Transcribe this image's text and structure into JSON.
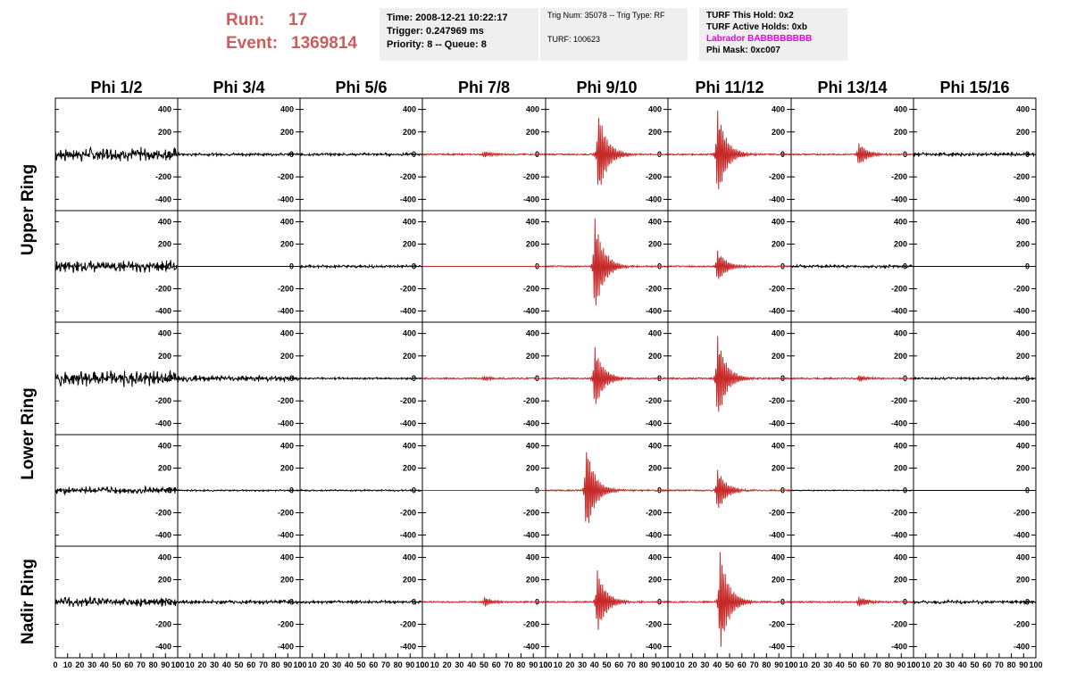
{
  "header": {
    "run_label": "Run:",
    "run_value": "17",
    "event_label": "Event:",
    "event_value": "1369814",
    "box1": [
      "Time: 2008-12-21 10:22:17",
      "Trigger: 0.247969 ms",
      "Priority: 8 -- Queue: 8"
    ],
    "box2": [
      "Trig Num: 35078 -- Trig Type: RF",
      "TURF: 100623"
    ],
    "box3": [
      "TURF This Hold: 0x2",
      "TURF Active Holds: 0xb",
      "Labrador BABBBBBBBB",
      "Phi Mask: 0xc007"
    ]
  },
  "colors": {
    "run_text": "#cd5c5c",
    "labrador_text": "#ee00ee",
    "trace_red": "#c62828",
    "trace_black": "#000000",
    "infobox_bg": "#efefef"
  },
  "chart_data": {
    "type": "line",
    "columns": [
      "Phi 1/2",
      "Phi 3/4",
      "Phi 5/6",
      "Phi 7/8",
      "Phi 9/10",
      "Phi 11/12",
      "Phi 13/14",
      "Phi 15/16"
    ],
    "rows": [
      "Upper Ring",
      "Upper Ring",
      "Lower Ring",
      "Lower Ring",
      "Nadir Ring"
    ],
    "ring_labels": [
      "Upper Ring",
      "Lower Ring",
      "Nadir Ring"
    ],
    "ylim": [
      -500,
      500
    ],
    "yticks": [
      -400,
      -200,
      0,
      200,
      400
    ],
    "xlim": [
      0,
      100
    ],
    "xticks": [
      0,
      10,
      20,
      30,
      40,
      50,
      60,
      70,
      80,
      90,
      100
    ],
    "panels": [
      [
        {
          "color": "black",
          "amp": 70,
          "t0": 5,
          "type": "noise"
        },
        {
          "color": "black",
          "amp": 15,
          "t0": 40,
          "type": "noise"
        },
        {
          "color": "black",
          "amp": 14,
          "t0": 50,
          "type": "noise"
        },
        {
          "color": "red",
          "amp": 30,
          "t0": 50,
          "type": "pulse"
        },
        {
          "color": "red",
          "amp": 400,
          "t0": 43,
          "type": "pulse"
        },
        {
          "color": "red",
          "amp": 420,
          "t0": 40,
          "type": "pulse"
        },
        {
          "color": "red",
          "amp": 110,
          "t0": 55,
          "type": "pulse"
        },
        {
          "color": "black",
          "amp": 18,
          "t0": 45,
          "type": "noise"
        }
      ],
      [
        {
          "color": "black",
          "amp": 60,
          "t0": 40,
          "type": "noise"
        },
        {
          "color": "black",
          "amp": 2,
          "t0": 50,
          "type": "flat"
        },
        {
          "color": "black",
          "amp": 15,
          "t0": 50,
          "type": "noise"
        },
        {
          "color": "red",
          "amp": 0,
          "t0": 50,
          "type": "flat"
        },
        {
          "color": "red",
          "amp": 460,
          "t0": 40,
          "type": "pulse"
        },
        {
          "color": "red",
          "amp": 150,
          "t0": 40,
          "type": "pulse"
        },
        {
          "color": "black",
          "amp": 15,
          "t0": 50,
          "type": "noise"
        },
        {
          "color": "black",
          "amp": 0,
          "t0": 50,
          "type": "flat"
        }
      ],
      [
        {
          "color": "black",
          "amp": 80,
          "t0": 45,
          "type": "noise"
        },
        {
          "color": "black",
          "amp": 30,
          "t0": 45,
          "type": "noise"
        },
        {
          "color": "black",
          "amp": 10,
          "t0": 50,
          "type": "noise"
        },
        {
          "color": "red",
          "amp": 25,
          "t0": 50,
          "type": "pulse"
        },
        {
          "color": "red",
          "amp": 300,
          "t0": 40,
          "type": "pulse"
        },
        {
          "color": "red",
          "amp": 400,
          "t0": 40,
          "type": "pulse"
        },
        {
          "color": "red",
          "amp": 30,
          "t0": 55,
          "type": "pulse"
        },
        {
          "color": "black",
          "amp": 12,
          "t0": 50,
          "type": "noise"
        }
      ],
      [
        {
          "color": "black",
          "amp": 35,
          "t0": 20,
          "type": "noise"
        },
        {
          "color": "black",
          "amp": 8,
          "t0": 50,
          "type": "noise"
        },
        {
          "color": "black",
          "amp": 8,
          "t0": 50,
          "type": "noise"
        },
        {
          "color": "red",
          "amp": 0,
          "t0": 50,
          "type": "flat"
        },
        {
          "color": "red",
          "amp": 420,
          "t0": 33,
          "type": "pulse"
        },
        {
          "color": "red",
          "amp": 200,
          "t0": 40,
          "type": "pulse"
        },
        {
          "color": "black",
          "amp": 5,
          "t0": 50,
          "type": "noise"
        },
        {
          "color": "black",
          "amp": 0,
          "t0": 50,
          "type": "flat"
        }
      ],
      [
        {
          "color": "black",
          "amp": 45,
          "t0": 60,
          "type": "noise"
        },
        {
          "color": "black",
          "amp": 20,
          "t0": 50,
          "type": "noise"
        },
        {
          "color": "black",
          "amp": 15,
          "t0": 50,
          "type": "noise"
        },
        {
          "color": "red",
          "amp": 45,
          "t0": 50,
          "type": "pulse"
        },
        {
          "color": "red",
          "amp": 300,
          "t0": 42,
          "type": "pulse"
        },
        {
          "color": "red",
          "amp": 480,
          "t0": 42,
          "type": "pulse"
        },
        {
          "color": "red",
          "amp": 50,
          "t0": 55,
          "type": "pulse"
        },
        {
          "color": "black",
          "amp": 18,
          "t0": 50,
          "type": "noise"
        }
      ]
    ]
  }
}
